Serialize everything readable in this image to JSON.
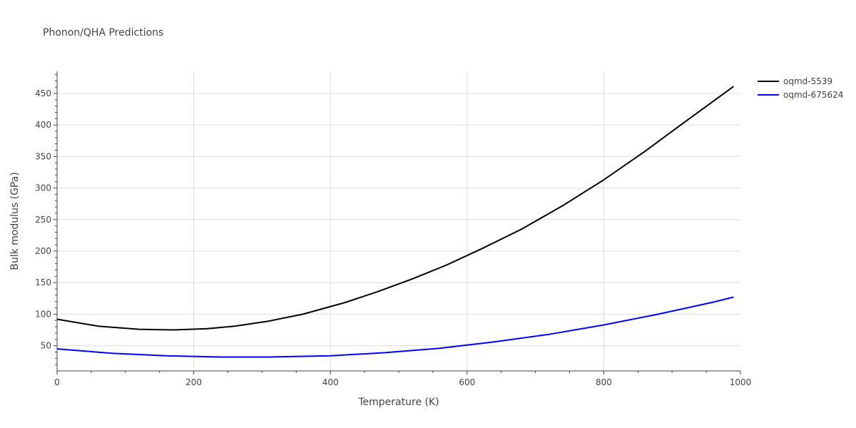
{
  "chart_data": {
    "type": "line",
    "title": "Phonon/QHA Predictions",
    "xlabel": "Temperature (K)",
    "ylabel": "Bulk modulus (GPa)",
    "xlim": [
      0,
      1000
    ],
    "ylim": [
      10,
      485
    ],
    "xticks": [
      0,
      200,
      400,
      600,
      800,
      1000
    ],
    "yticks": [
      50,
      100,
      150,
      200,
      250,
      300,
      350,
      400,
      450
    ],
    "grid": true,
    "legend_position": "top-right",
    "series": [
      {
        "name": "oqmd-5539",
        "color": "#000000",
        "x": [
          0,
          60,
          120,
          170,
          220,
          260,
          310,
          360,
          420,
          470,
          520,
          570,
          620,
          680,
          740,
          800,
          860,
          920,
          990
        ],
        "y": [
          92,
          81,
          76,
          75,
          77,
          81,
          89,
          100,
          118,
          136,
          156,
          178,
          203,
          235,
          272,
          313,
          358,
          406,
          461
        ]
      },
      {
        "name": "oqmd-675624",
        "color": "#0000ff",
        "x": [
          0,
          80,
          160,
          240,
          310,
          400,
          480,
          560,
          640,
          720,
          800,
          880,
          960,
          990
        ],
        "y": [
          45,
          38,
          34,
          32,
          32,
          34,
          39,
          46,
          56,
          68,
          83,
          100,
          119,
          127
        ]
      }
    ]
  }
}
